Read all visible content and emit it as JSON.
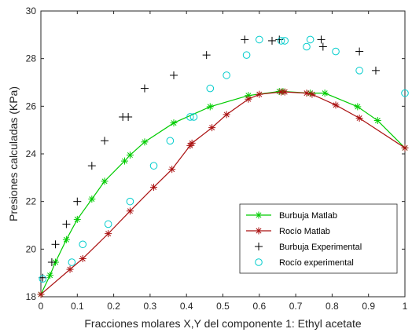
{
  "chart_data": {
    "type": "line",
    "xlabel": "Fracciones molares X,Y del componente 1: Ethyl acetate",
    "ylabel": "Presiones calculadas (KPa)",
    "xlim": [
      0,
      1
    ],
    "ylim": [
      18,
      30
    ],
    "xticks": [
      0,
      0.1,
      0.2,
      0.3,
      0.4,
      0.5,
      0.6,
      0.7,
      0.8,
      0.9,
      1
    ],
    "xtick_labels": [
      "0",
      "0.1",
      "0.2",
      "0.3",
      "0.4",
      "0.5",
      "0.6",
      "0.7",
      "0.8",
      "0.9",
      "1"
    ],
    "yticks": [
      18,
      20,
      22,
      24,
      26,
      28,
      30
    ],
    "ytick_labels": [
      "18",
      "20",
      "22",
      "24",
      "26",
      "28",
      "30"
    ],
    "grid": false,
    "legend_position": "bottom-right",
    "series": [
      {
        "name": "Burbuja Matlab",
        "color": "#00cc00",
        "line": true,
        "marker": "asterisk",
        "x": [
          0,
          0.025,
          0.04,
          0.07,
          0.1,
          0.14,
          0.175,
          0.23,
          0.245,
          0.285,
          0.365,
          0.465,
          0.57,
          0.655,
          0.665,
          0.74,
          0.78,
          0.87,
          0.925,
          1
        ],
        "y": [
          18.1,
          18.9,
          19.45,
          20.4,
          21.25,
          22.1,
          22.85,
          23.7,
          23.95,
          24.5,
          25.3,
          25.98,
          26.45,
          26.62,
          26.62,
          26.55,
          26.55,
          25.98,
          25.4,
          24.25
        ]
      },
      {
        "name": "Rocío Matlab",
        "color": "#aa1111",
        "line": true,
        "marker": "asterisk",
        "x": [
          0,
          0.08,
          0.115,
          0.185,
          0.245,
          0.31,
          0.36,
          0.41,
          0.415,
          0.47,
          0.51,
          0.57,
          0.6,
          0.66,
          0.67,
          0.73,
          0.745,
          0.81,
          0.875,
          1
        ],
        "y": [
          18.1,
          19.15,
          19.6,
          20.65,
          21.6,
          22.6,
          23.35,
          24.35,
          24.45,
          25.1,
          25.65,
          26.3,
          26.5,
          26.6,
          26.6,
          26.55,
          26.5,
          26.05,
          25.5,
          24.25
        ]
      },
      {
        "name": "Burbuja Experimental",
        "color": "#000000",
        "line": false,
        "marker": "plus",
        "x": [
          0.005,
          0.03,
          0.04,
          0.07,
          0.1,
          0.14,
          0.175,
          0.225,
          0.24,
          0.285,
          0.365,
          0.455,
          0.56,
          0.635,
          0.655,
          0.77,
          0.775,
          0.875,
          0.92
        ],
        "y": [
          18.8,
          19.45,
          20.2,
          21.05,
          22.0,
          23.5,
          24.55,
          25.55,
          25.55,
          26.75,
          27.3,
          28.15,
          28.8,
          28.75,
          28.8,
          28.8,
          28.5,
          28.3,
          27.5
        ]
      },
      {
        "name": "Rocío experimental",
        "color": "#00cccc",
        "line": false,
        "marker": "circle",
        "x": [
          0.005,
          0.085,
          0.115,
          0.185,
          0.245,
          0.31,
          0.355,
          0.41,
          0.42,
          0.465,
          0.51,
          0.565,
          0.6,
          0.66,
          0.67,
          0.73,
          0.74,
          0.81,
          0.875,
          1
        ],
        "y": [
          18.75,
          19.45,
          20.2,
          21.05,
          22.0,
          23.5,
          24.55,
          25.55,
          25.55,
          26.75,
          27.3,
          28.15,
          28.8,
          28.75,
          28.75,
          28.5,
          28.8,
          28.3,
          27.5,
          26.55
        ]
      }
    ]
  }
}
